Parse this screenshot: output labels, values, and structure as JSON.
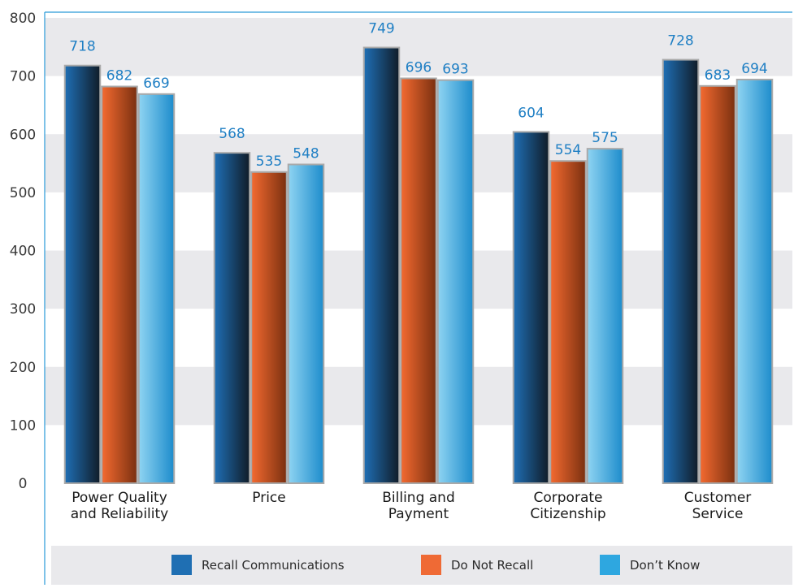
{
  "chart_data": {
    "type": "bar",
    "title": "",
    "xlabel": "",
    "ylabel": "",
    "ylim": [
      0,
      800
    ],
    "yticks": [
      0,
      100,
      200,
      300,
      400,
      500,
      600,
      700,
      800
    ],
    "grid": "alternating horizontal bands",
    "legend_position": "bottom",
    "categories": [
      [
        "Power Quality",
        "and Reliability"
      ],
      [
        "Price"
      ],
      [
        "Billing and",
        "Payment"
      ],
      [
        "Corporate",
        "Citizenship"
      ],
      [
        "Customer",
        "Service"
      ]
    ],
    "series": [
      {
        "name": "Recall Communications",
        "color": "#1f6fb3",
        "values": [
          718,
          568,
          749,
          604,
          728
        ]
      },
      {
        "name": "Do Not Recall",
        "color": "#ef6a35",
        "values": [
          682,
          535,
          696,
          554,
          683
        ]
      },
      {
        "name": "Don’t Know",
        "color": "#2ea7e0",
        "values": [
          669,
          548,
          693,
          575,
          694
        ]
      }
    ]
  }
}
